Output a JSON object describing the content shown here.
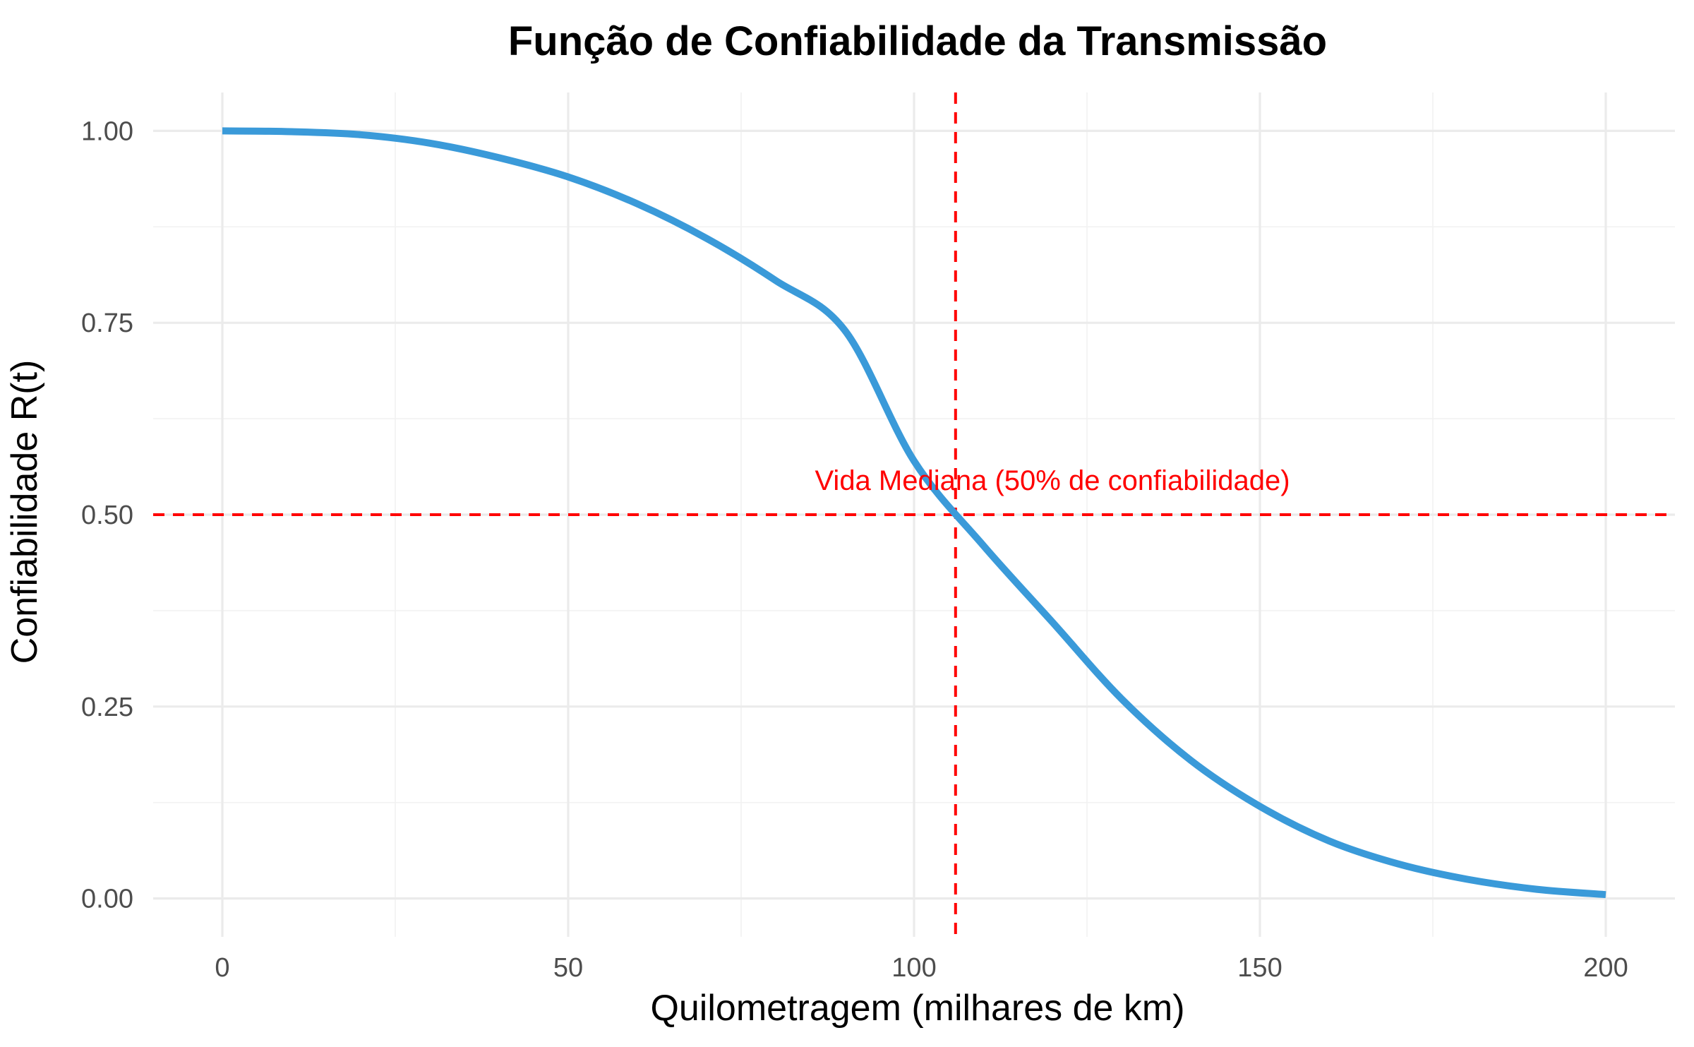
{
  "chart_data": {
    "type": "line",
    "title": "Função de Confiabilidade da Transmissão",
    "xlabel": "Quilometragem (milhares de km)",
    "ylabel": "Confiabilidade R(t)",
    "xlim": [
      -10,
      210
    ],
    "ylim": [
      -0.05,
      1.05
    ],
    "x_ticks": [
      0,
      50,
      100,
      150,
      200
    ],
    "x_tick_labels": [
      "0",
      "50",
      "100",
      "150",
      "200"
    ],
    "y_ticks": [
      0,
      0.25,
      0.5,
      0.75,
      1.0
    ],
    "y_tick_labels": [
      "0.00",
      "0.25",
      "0.50",
      "0.75",
      "1.00"
    ],
    "grid": true,
    "series": [
      {
        "color": "#3A9AD9",
        "x": [
          0,
          10,
          20,
          30,
          40,
          50,
          60,
          70,
          80,
          90,
          100,
          110,
          120,
          130,
          140,
          150,
          160,
          170,
          180,
          190,
          200
        ],
        "y": [
          1.0,
          0.999,
          0.995,
          0.984,
          0.965,
          0.94,
          0.905,
          0.86,
          0.805,
          0.74,
          0.57,
          0.46,
          0.36,
          0.26,
          0.18,
          0.12,
          0.075,
          0.045,
          0.025,
          0.012,
          0.005
        ]
      }
    ],
    "reference_lines": [
      {
        "orientation": "horizontal",
        "value": 0.5,
        "style": "dashed",
        "color": "#ff0000"
      },
      {
        "orientation": "vertical",
        "value": 106,
        "style": "dashed",
        "color": "#ff0000"
      }
    ],
    "annotations": [
      {
        "text": "Vida Mediana (50% de confiabilidade)",
        "x": 120,
        "y": 0.545,
        "color": "#ff0000"
      }
    ]
  }
}
